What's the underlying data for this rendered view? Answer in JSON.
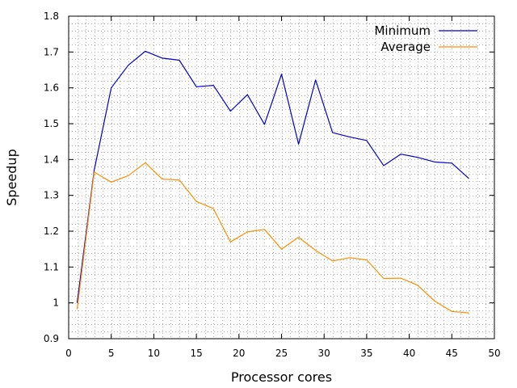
{
  "chart_data": {
    "type": "line",
    "xlabel": "Processor cores",
    "ylabel": "Speedup",
    "xlim": [
      0,
      50
    ],
    "ylim": [
      0.9,
      1.8
    ],
    "x_ticks": [
      0,
      5,
      10,
      15,
      20,
      25,
      30,
      35,
      40,
      45,
      50
    ],
    "y_ticks": [
      0.9,
      1,
      1.1,
      1.2,
      1.3,
      1.4,
      1.5,
      1.6,
      1.7,
      1.8
    ],
    "x_minor_step": 1,
    "y_minor_step": 0.02,
    "grid": true,
    "grid_style": "dotted",
    "legend_position": "top-right",
    "x": [
      1,
      3,
      5,
      7,
      9,
      11,
      13,
      15,
      17,
      19,
      21,
      23,
      25,
      27,
      29,
      31,
      33,
      35,
      37,
      39,
      41,
      43,
      45,
      47
    ],
    "series": [
      {
        "name": "Minimum",
        "color": "#0000cc",
        "values": [
          1.0,
          1.37,
          1.6,
          1.663,
          1.702,
          1.683,
          1.677,
          1.603,
          1.607,
          1.535,
          1.581,
          1.498,
          1.638,
          1.443,
          1.622,
          1.475,
          1.463,
          1.453,
          1.383,
          1.415,
          1.406,
          1.393,
          1.39,
          1.347
        ]
      },
      {
        "name": "Average",
        "color": "#ff8c00",
        "values": [
          0.982,
          1.365,
          1.337,
          1.355,
          1.391,
          1.345,
          1.343,
          1.283,
          1.263,
          1.17,
          1.198,
          1.205,
          1.15,
          1.183,
          1.146,
          1.117,
          1.126,
          1.12,
          1.068,
          1.069,
          1.049,
          1.005,
          0.976,
          0.972
        ]
      }
    ]
  }
}
